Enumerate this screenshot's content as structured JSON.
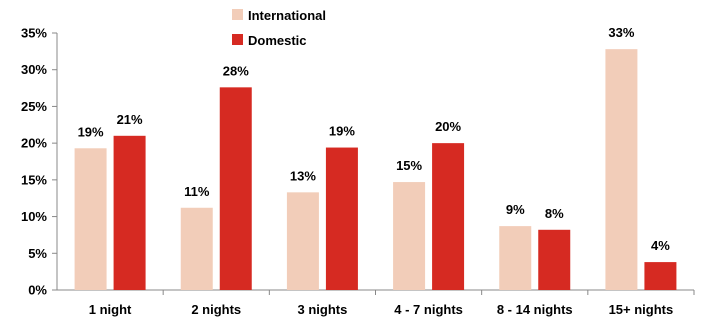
{
  "chart_data": {
    "type": "bar",
    "categories": [
      "1 night",
      "2 nights",
      "3 nights",
      "4 - 7 nights",
      "8 - 14 nights",
      "15+ nights"
    ],
    "series": [
      {
        "name": "International",
        "color": "#F2CDB9",
        "values": [
          19.3,
          11.2,
          13.3,
          14.7,
          8.7,
          32.8
        ],
        "labels": [
          "19%",
          "11%",
          "13%",
          "15%",
          "9%",
          "33%"
        ]
      },
      {
        "name": "Domestic",
        "color": "#D62A22",
        "values": [
          21.0,
          27.6,
          19.4,
          20.0,
          8.2,
          3.8
        ],
        "labels": [
          "21%",
          "28%",
          "19%",
          "20%",
          "8%",
          "4%"
        ]
      }
    ],
    "y_ticks": [
      "0%",
      "5%",
      "10%",
      "15%",
      "20%",
      "25%",
      "30%",
      "35%"
    ],
    "ylim": [
      0,
      35
    ],
    "legend_position": "top",
    "grid": false
  }
}
